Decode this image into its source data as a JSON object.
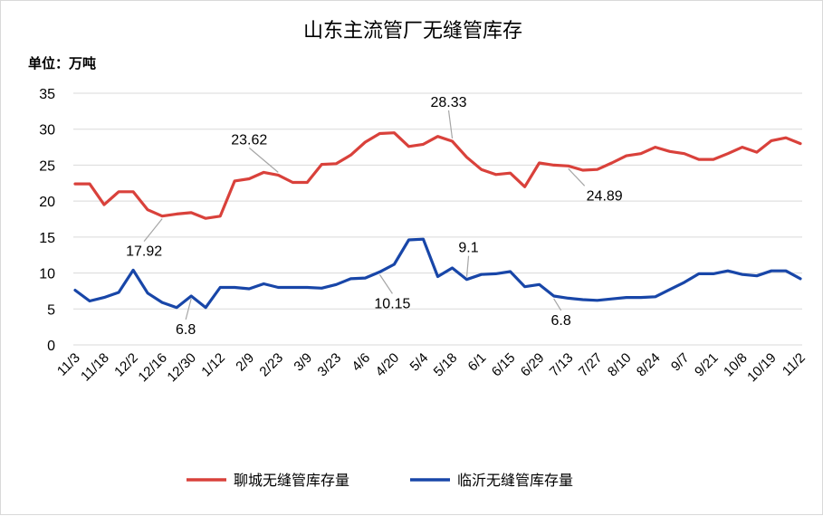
{
  "chart_data": {
    "type": "line",
    "title": "山东主流管厂无缝管库存",
    "unit_label": "单位：万吨",
    "ylim": [
      0,
      35
    ],
    "yticks": [
      "0",
      "5",
      "10",
      "15",
      "20",
      "25",
      "30",
      "35"
    ],
    "grid": "horizontal",
    "legend_position": "bottom",
    "x_tick_labels": [
      "11/3",
      "11/18",
      "12/2",
      "12/16",
      "12/30",
      "1/12",
      "2/9",
      "2/23",
      "3/9",
      "3/23",
      "4/6",
      "4/20",
      "5/4",
      "5/18",
      "6/1",
      "6/15",
      "6/29",
      "7/13",
      "7/27",
      "8/10",
      "8/24",
      "9/7",
      "9/21",
      "10/8",
      "10/19",
      "11/2"
    ],
    "series": [
      {
        "name": "聊城无缝管库存量",
        "color": "#d9413b",
        "values": [
          22.4,
          22.4,
          19.5,
          21.3,
          21.3,
          18.8,
          17.92,
          18.2,
          18.4,
          17.6,
          17.9,
          22.8,
          23.1,
          24.0,
          23.62,
          22.6,
          22.6,
          25.1,
          25.2,
          26.4,
          28.2,
          29.4,
          29.5,
          27.6,
          27.9,
          29.0,
          28.33,
          26.1,
          24.4,
          23.7,
          23.9,
          22.0,
          25.3,
          25.0,
          24.89,
          24.3,
          24.4,
          25.3,
          26.3,
          26.6,
          27.5,
          26.9,
          26.6,
          25.8,
          25.8,
          26.6,
          27.5,
          26.8,
          28.4,
          28.8,
          28.0
        ]
      },
      {
        "name": "临沂无缝管库存量",
        "color": "#1846a8",
        "values": [
          7.6,
          6.1,
          6.6,
          7.3,
          10.4,
          7.2,
          5.9,
          5.2,
          6.8,
          5.2,
          8.0,
          8.0,
          7.8,
          8.5,
          8.0,
          8.0,
          8.0,
          7.9,
          8.4,
          9.2,
          9.3,
          10.15,
          11.2,
          14.6,
          14.7,
          9.5,
          10.7,
          9.1,
          9.8,
          9.9,
          10.2,
          8.1,
          8.4,
          6.8,
          6.5,
          6.3,
          6.2,
          6.4,
          6.6,
          6.6,
          6.7,
          7.7,
          8.7,
          9.9,
          9.9,
          10.3,
          9.8,
          9.6,
          10.3,
          10.3,
          9.2
        ]
      }
    ],
    "annotations": [
      {
        "text": "17.92",
        "series": 0,
        "index": 6
      },
      {
        "text": "23.62",
        "series": 0,
        "index": 14
      },
      {
        "text": "28.33",
        "series": 0,
        "index": 26
      },
      {
        "text": "24.89",
        "series": 0,
        "index": 34
      },
      {
        "text": "6.8",
        "series": 1,
        "index": 8
      },
      {
        "text": "10.15",
        "series": 1,
        "index": 21
      },
      {
        "text": "9.1",
        "series": 1,
        "index": 27
      },
      {
        "text": "6.8",
        "series": 1,
        "index": 33
      }
    ]
  }
}
